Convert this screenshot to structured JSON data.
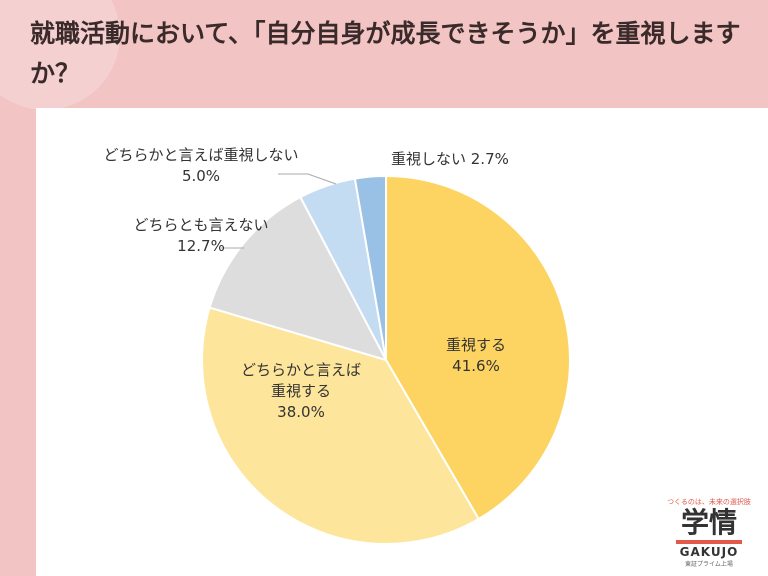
{
  "title": "就職活動において、「自分自身が成長できそうか」を重視しますか？",
  "logo": {
    "tagline": "つくるのは、未来の選択肢",
    "name": "学情",
    "name_en": "GAKUJO",
    "subline": "東証プライム上場"
  },
  "colors": {
    "background": "#f2c4c4",
    "panel": "#ffffff",
    "accent": "#e2584a"
  },
  "chart_data": {
    "type": "pie",
    "start_angle_deg": 0,
    "direction": "clockwise",
    "slices": [
      {
        "label": "重視する",
        "value": 41.6,
        "value_label": "41.6%",
        "color": "#fdd462"
      },
      {
        "label": "どちらかと言えば重視する",
        "value": 38.0,
        "value_label": "38.0%",
        "color": "#fde69b"
      },
      {
        "label": "どちらとも言えない",
        "value": 12.7,
        "value_label": "12.7%",
        "color": "#dddddd"
      },
      {
        "label": "どちらかと言えば重視しない",
        "value": 5.0,
        "value_label": "5.0%",
        "color": "#c4dcf2"
      },
      {
        "label": "重視しない",
        "value": 2.7,
        "value_label": "2.7%",
        "color": "#99c0e5"
      }
    ]
  }
}
